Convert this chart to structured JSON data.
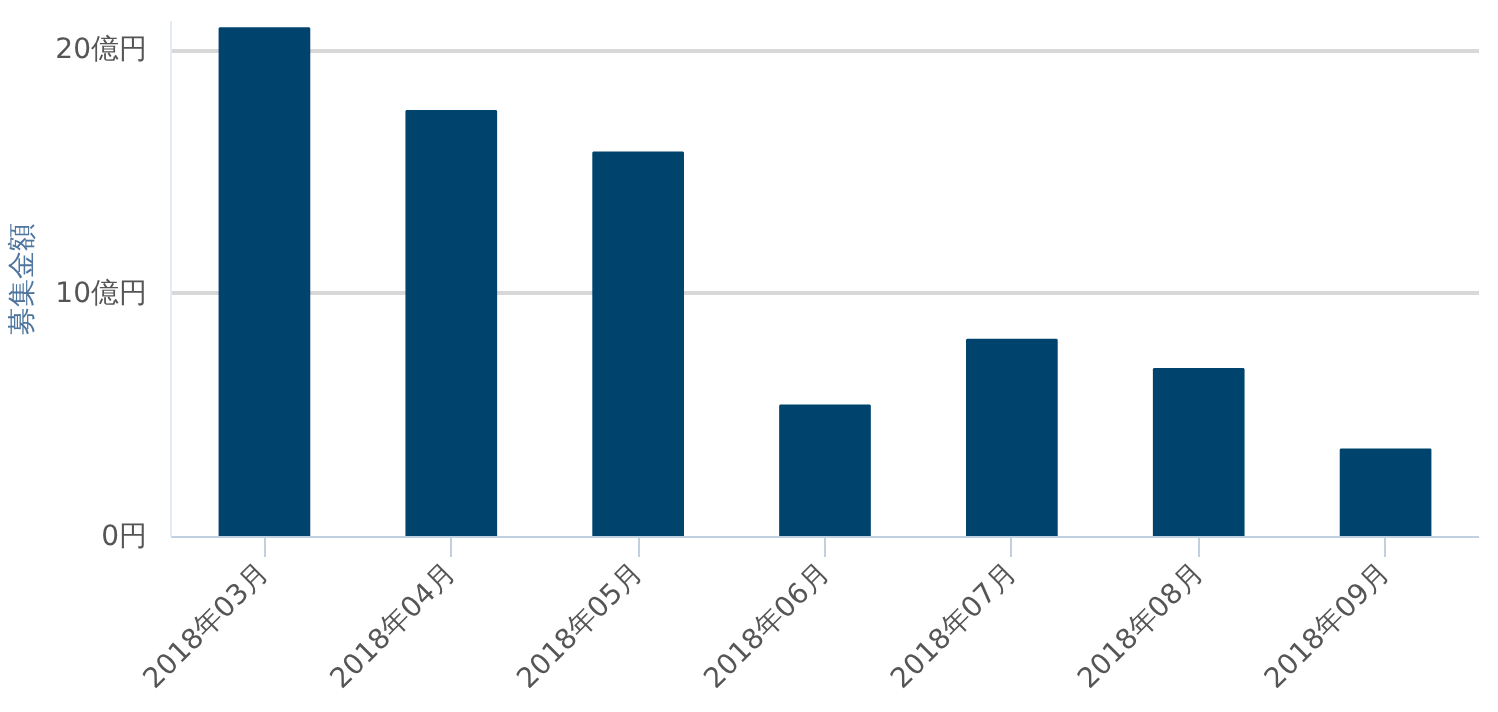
{
  "chart_data": {
    "type": "bar",
    "ylabel": "募集金額",
    "categories": [
      "2018年03月",
      "2018年04月",
      "2018年05月",
      "2018年06月",
      "2018年07月",
      "2018年08月",
      "2018年09月"
    ],
    "values": [
      20.9,
      17.5,
      15.8,
      5.4,
      8.1,
      6.9,
      3.6
    ],
    "color": "#00446e",
    "yticks": [
      {
        "value": 0,
        "label": "0円"
      },
      {
        "value": 10,
        "label": "10億円"
      },
      {
        "value": 20,
        "label": "20億円"
      }
    ],
    "ylim": [
      0,
      21.2
    ],
    "grid": "y"
  }
}
